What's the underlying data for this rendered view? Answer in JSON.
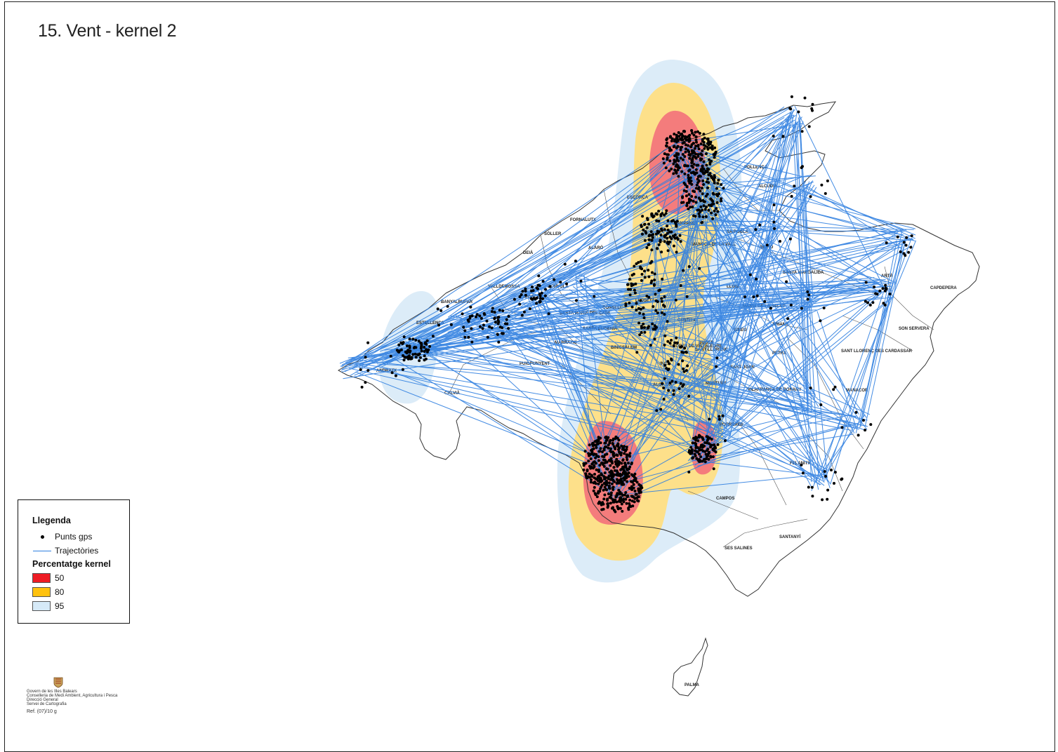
{
  "title": "15. Vent - kernel 2",
  "legend": {
    "title": "Llegenda",
    "points_label": "Punts gps",
    "tracks_label": "Trajectòries",
    "kernel_title": "Percentatge kernel",
    "kernel_levels": [
      {
        "label": "50",
        "color": "#ee1c24"
      },
      {
        "label": "80",
        "color": "#ffc20e"
      },
      {
        "label": "95",
        "color": "#d6eaf8"
      }
    ]
  },
  "colors": {
    "track": "#2f7fe0",
    "points": "#000000",
    "kernel_50": "#f47c7c",
    "kernel_80": "#fde08a",
    "kernel_95": "#dcecf8",
    "coast": "#333333"
  },
  "place_names": [
    "ANDRATX",
    "CALVIÀ",
    "ESTELLENCS",
    "BANYALBUFAR",
    "VALLDEMOSSA",
    "DEIÀ",
    "SÓLLER",
    "FORNALUTX",
    "ESCORCA",
    "POLLENÇA",
    "ALCÚDIA",
    "SA POBLA",
    "MURO",
    "SANTA MARGALIDA",
    "ARTÀ",
    "CAPDEPERA",
    "SON SERVERA",
    "SANT LLORENÇ DES CARDASSAR",
    "MANACOR",
    "PETRA",
    "ARIANY",
    "MARIA DE LA SALUT",
    "LLUBÍ",
    "SINEU",
    "SANT JOAN",
    "VILAFRANCA DE BONANY",
    "PORRERES",
    "FELANITX",
    "CAMPOS",
    "SANTANYÍ",
    "SES SALINES",
    "LLUCMAJOR",
    "ALGAIDA",
    "MONTUÏRI",
    "LLORET DE VISTALEGRE",
    "SENCELLES",
    "COSTITX",
    "SANTA MARIA DEL CAMÍ",
    "BUNYOLA",
    "MARRATXÍ",
    "ALARÓ",
    "CONSELL",
    "BINISSALEM",
    "LLOSETA",
    "SELVA",
    "CAMPANET",
    "INCA",
    "BÚGER",
    "MANCOR DE LA VALL",
    "PALMA",
    "ESPORLES",
    "PUIGPUNYENT",
    "SANTA EUGÈNIA",
    "SANT LLORENÇ"
  ],
  "credits": {
    "line1": "Govern de les Illes Balears",
    "line2": "Conselleria de Medi Ambient, Agricultura i Pesca",
    "line3": "Direcció General",
    "line4": "Servei de Cartografia",
    "ref": "Ref. (07)/10 g"
  }
}
